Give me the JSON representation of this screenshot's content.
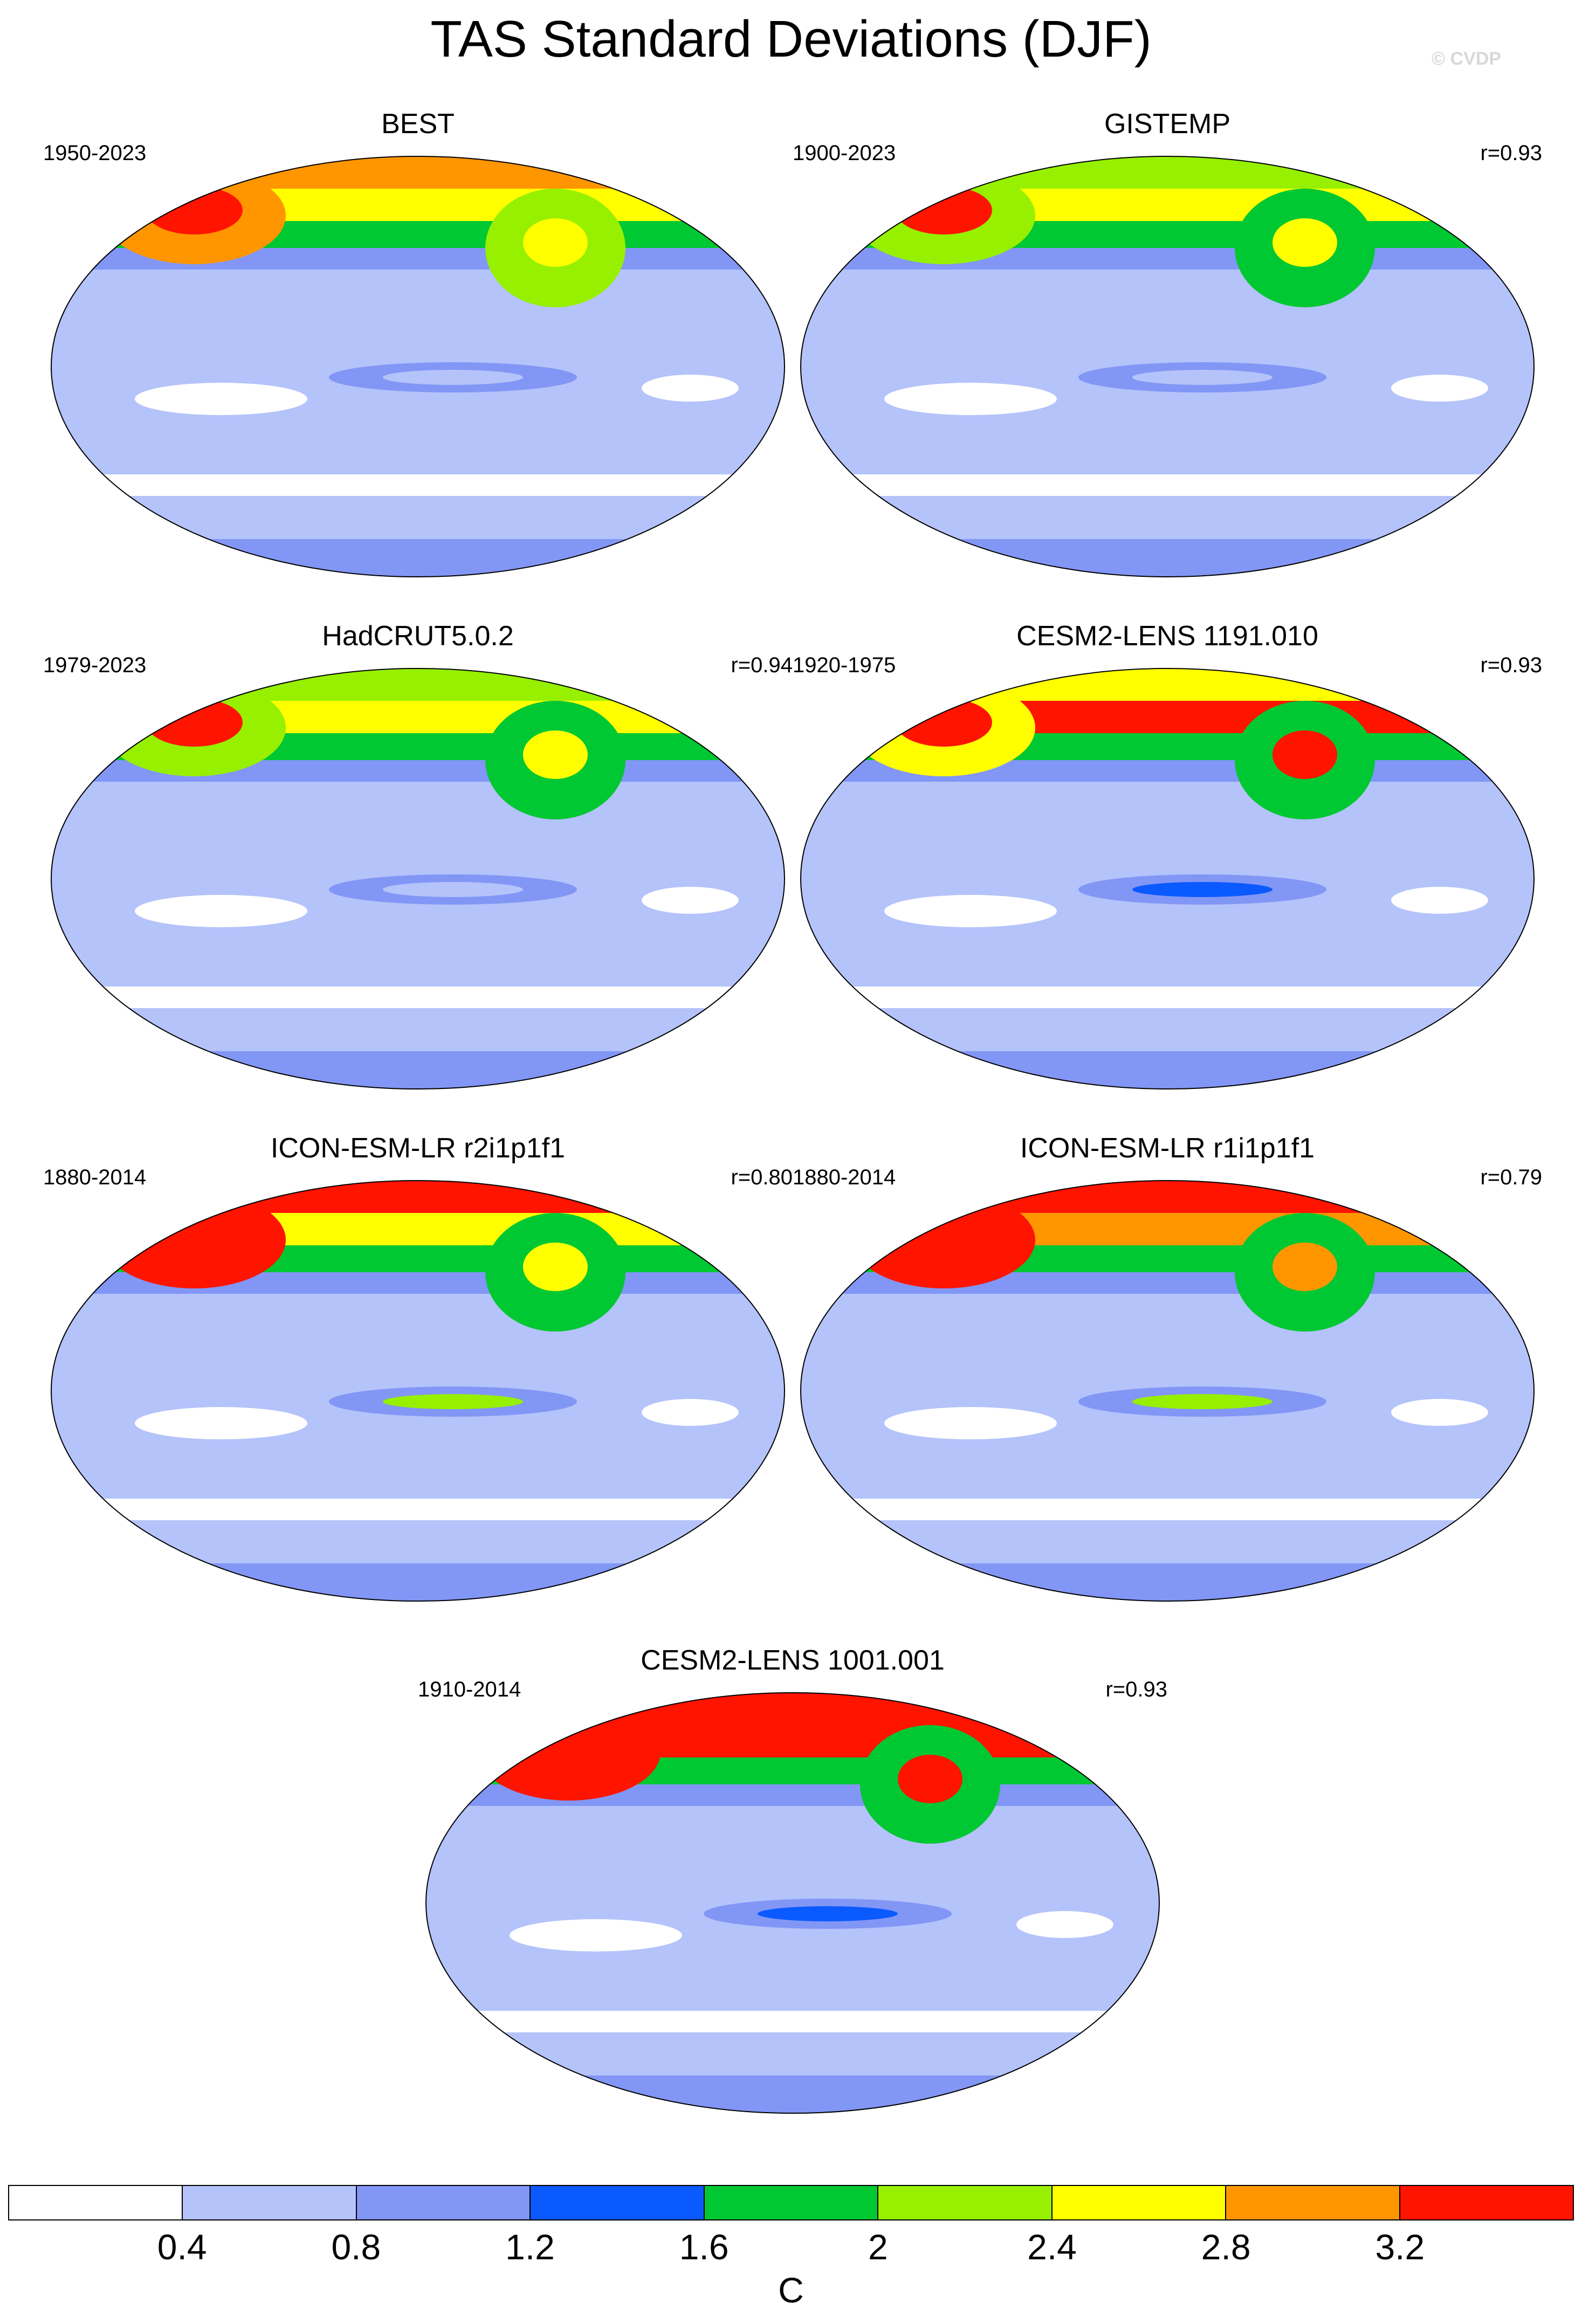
{
  "title": "TAS Standard Deviations (DJF)",
  "copyright": "© CVDP",
  "palette": [
    "#ffffff",
    "#b4c3fa",
    "#8296f5",
    "#0a5aff",
    "#00c832",
    "#96f000",
    "#ffff00",
    "#ff9600",
    "#ff1400"
  ],
  "panels": [
    {
      "title": "BEST",
      "period": "1950-2023",
      "corr": "",
      "levels": [
        6,
        7,
        5,
        1,
        2
      ]
    },
    {
      "title": "GISTEMP",
      "period": "1900-2023",
      "corr": "r=0.93",
      "levels": [
        6,
        5,
        4,
        1,
        2
      ]
    },
    {
      "title": "HadCRUT5.0.2",
      "period": "1979-2023",
      "corr": "r=0.94",
      "levels": [
        6,
        5,
        4,
        1,
        1
      ]
    },
    {
      "title": "CESM2-LENS 1191.010",
      "period": "1920-1975",
      "corr": "r=0.93",
      "levels": [
        8,
        6,
        4,
        3,
        1
      ]
    },
    {
      "title": "ICON-ESM-LR r2i1p1f1",
      "period": "1880-2014",
      "corr": "r=0.80",
      "levels": [
        6,
        8,
        4,
        5,
        1
      ]
    },
    {
      "title": "ICON-ESM-LR r1i1p1f1",
      "period": "1880-2014",
      "corr": "r=0.79",
      "levels": [
        7,
        8,
        4,
        5,
        1
      ]
    },
    {
      "title": "CESM2-LENS 1001.001",
      "period": "1910-2014",
      "corr": "r=0.93",
      "levels": [
        8,
        8,
        4,
        3,
        1
      ]
    }
  ],
  "colorbar": {
    "ticks": [
      "0.4",
      "0.8",
      "1.2",
      "1.6",
      "2",
      "2.4",
      "2.8",
      "3.2"
    ],
    "unit": "C"
  }
}
